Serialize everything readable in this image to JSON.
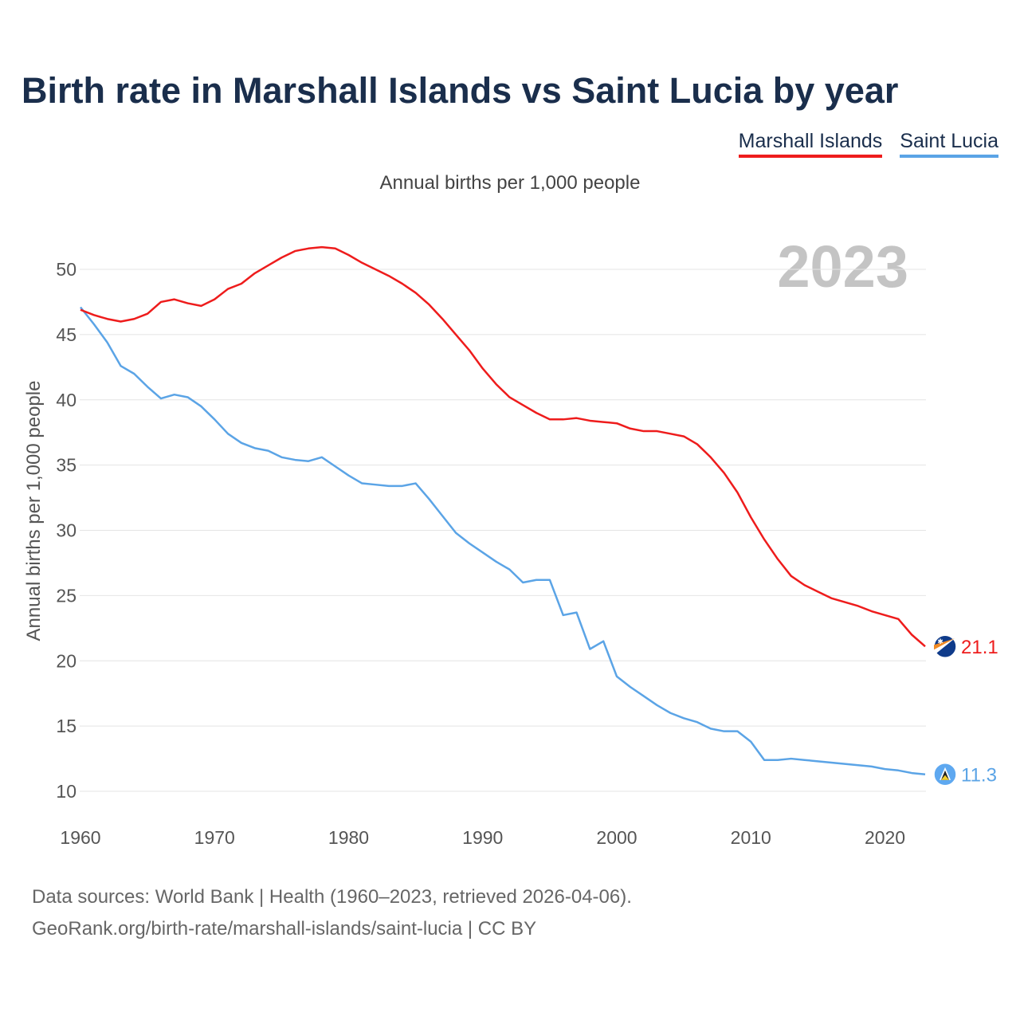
{
  "chart_data": {
    "type": "line",
    "title": "Birth rate in Marshall Islands vs Saint Lucia by year",
    "subtitle": "Annual births per 1,000 people",
    "ylabel": "Annual births per 1,000 people",
    "xlabel": "",
    "year_label": "2023",
    "xlim": [
      1960,
      2023
    ],
    "ylim": [
      10,
      53
    ],
    "x_ticks": [
      1960,
      1970,
      1980,
      1990,
      2000,
      2010,
      2020
    ],
    "y_ticks": [
      10,
      15,
      20,
      25,
      30,
      35,
      40,
      45,
      50
    ],
    "grid": true,
    "legend_position": "top-right",
    "x": [
      1960,
      1961,
      1962,
      1963,
      1964,
      1965,
      1966,
      1967,
      1968,
      1969,
      1970,
      1971,
      1972,
      1973,
      1974,
      1975,
      1976,
      1977,
      1978,
      1979,
      1980,
      1981,
      1982,
      1983,
      1984,
      1985,
      1986,
      1987,
      1988,
      1989,
      1990,
      1991,
      1992,
      1993,
      1994,
      1995,
      1996,
      1997,
      1998,
      1999,
      2000,
      2001,
      2002,
      2003,
      2004,
      2005,
      2006,
      2007,
      2008,
      2009,
      2010,
      2011,
      2012,
      2013,
      2014,
      2015,
      2016,
      2017,
      2018,
      2019,
      2020,
      2021,
      2022,
      2023
    ],
    "series": [
      {
        "name": "Marshall Islands",
        "color": "#ee1c1c",
        "end_label": "21.1",
        "values": [
          46.9,
          46.5,
          46.2,
          46.0,
          46.2,
          46.6,
          47.5,
          47.7,
          47.4,
          47.2,
          47.7,
          48.5,
          48.9,
          49.7,
          50.3,
          50.9,
          51.4,
          51.6,
          51.7,
          51.6,
          51.1,
          50.5,
          50.0,
          49.5,
          48.9,
          48.2,
          47.3,
          46.2,
          45.0,
          43.8,
          42.4,
          41.2,
          40.2,
          39.6,
          39.0,
          38.5,
          38.5,
          38.6,
          38.4,
          38.3,
          38.2,
          37.8,
          37.6,
          37.6,
          37.4,
          37.2,
          36.6,
          35.6,
          34.4,
          32.9,
          31.0,
          29.3,
          27.8,
          26.5,
          25.8,
          25.3,
          24.8,
          24.5,
          24.2,
          23.8,
          23.5,
          23.2,
          22.0,
          21.1
        ]
      },
      {
        "name": "Saint Lucia",
        "color": "#5ba4e6",
        "end_label": "11.3",
        "values": [
          47.1,
          45.8,
          44.4,
          42.6,
          42.0,
          41.0,
          40.1,
          40.4,
          40.2,
          39.5,
          38.5,
          37.4,
          36.7,
          36.3,
          36.1,
          35.6,
          35.4,
          35.3,
          35.6,
          34.9,
          34.2,
          33.6,
          33.5,
          33.4,
          33.4,
          33.6,
          32.4,
          31.1,
          29.8,
          29.0,
          28.3,
          27.6,
          27.0,
          26.0,
          26.2,
          26.2,
          23.5,
          23.7,
          20.9,
          21.5,
          18.8,
          18.0,
          17.3,
          16.6,
          16.0,
          15.6,
          15.3,
          14.8,
          14.6,
          14.6,
          13.8,
          12.4,
          12.4,
          12.5,
          12.4,
          12.3,
          12.2,
          12.1,
          12.0,
          11.9,
          11.7,
          11.6,
          11.4,
          11.3
        ]
      }
    ]
  },
  "source": {
    "line1": "Data sources: World Bank | Health (1960–2023, retrieved 2026-04-06).",
    "line2": "GeoRank.org/birth-rate/marshall-islands/saint-lucia | CC BY"
  }
}
